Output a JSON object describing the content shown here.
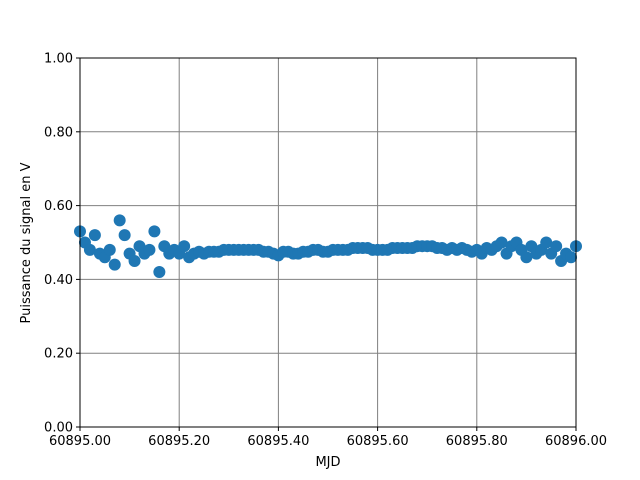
{
  "chart_data": {
    "type": "scatter",
    "xlabel": "MJD",
    "ylabel": "Puissance du signal en V",
    "color": "#1f77b4",
    "grid": true,
    "xlim": [
      60895.0,
      60896.0
    ],
    "ylim": [
      0,
      1
    ],
    "xticks": [
      {
        "value": 60895.0,
        "label": "60895.00"
      },
      {
        "value": 60895.2,
        "label": "60895.20"
      },
      {
        "value": 60895.4,
        "label": "60895.40"
      },
      {
        "value": 60895.6,
        "label": "60895.60"
      },
      {
        "value": 60895.8,
        "label": "60895.80"
      },
      {
        "value": 60896.0,
        "label": "60896.00"
      }
    ],
    "yticks": [
      {
        "value": 0,
        "label": "0.00"
      },
      {
        "value": 0.2,
        "label": "0.20"
      },
      {
        "value": 0.4,
        "label": "0.40"
      },
      {
        "value": 0.6,
        "label": "0.60"
      },
      {
        "value": 0.8,
        "label": "0.80"
      },
      {
        "value": 1,
        "label": "1.00"
      }
    ],
    "x": [
      60895.0,
      60895.01,
      60895.02,
      60895.03,
      60895.04,
      60895.05,
      60895.06,
      60895.07,
      60895.08,
      60895.09,
      60895.1,
      60895.11,
      60895.12,
      60895.13,
      60895.14,
      60895.15,
      60895.16,
      60895.17,
      60895.18,
      60895.19,
      60895.2,
      60895.21,
      60895.22,
      60895.23,
      60895.24,
      60895.25,
      60895.26,
      60895.27,
      60895.28,
      60895.29,
      60895.3,
      60895.31,
      60895.32,
      60895.33,
      60895.34,
      60895.35,
      60895.36,
      60895.37,
      60895.38,
      60895.39,
      60895.4,
      60895.41,
      60895.42,
      60895.43,
      60895.44,
      60895.45,
      60895.46,
      60895.47,
      60895.48,
      60895.49,
      60895.5,
      60895.51,
      60895.52,
      60895.53,
      60895.54,
      60895.55,
      60895.56,
      60895.57,
      60895.58,
      60895.59,
      60895.6,
      60895.61,
      60895.62,
      60895.63,
      60895.64,
      60895.65,
      60895.66,
      60895.67,
      60895.68,
      60895.69,
      60895.7,
      60895.71,
      60895.72,
      60895.73,
      60895.74,
      60895.75,
      60895.76,
      60895.77,
      60895.78,
      60895.79,
      60895.8,
      60895.81,
      60895.82,
      60895.83,
      60895.84,
      60895.85,
      60895.86,
      60895.87,
      60895.88,
      60895.89,
      60895.9,
      60895.91,
      60895.92,
      60895.93,
      60895.94,
      60895.95,
      60895.96,
      60895.97,
      60895.98,
      60895.99,
      60896.0
    ],
    "values": [
      0.53,
      0.5,
      0.48,
      0.52,
      0.47,
      0.46,
      0.48,
      0.44,
      0.56,
      0.52,
      0.47,
      0.45,
      0.49,
      0.47,
      0.48,
      0.53,
      0.42,
      0.49,
      0.47,
      0.48,
      0.47,
      0.49,
      0.46,
      0.47,
      0.475,
      0.47,
      0.475,
      0.475,
      0.475,
      0.48,
      0.48,
      0.48,
      0.48,
      0.48,
      0.48,
      0.48,
      0.48,
      0.475,
      0.475,
      0.47,
      0.465,
      0.475,
      0.475,
      0.47,
      0.47,
      0.475,
      0.475,
      0.48,
      0.48,
      0.475,
      0.475,
      0.48,
      0.48,
      0.48,
      0.48,
      0.485,
      0.485,
      0.485,
      0.485,
      0.48,
      0.48,
      0.48,
      0.48,
      0.485,
      0.485,
      0.485,
      0.485,
      0.485,
      0.49,
      0.49,
      0.49,
      0.49,
      0.485,
      0.485,
      0.48,
      0.485,
      0.48,
      0.485,
      0.48,
      0.475,
      0.48,
      0.47,
      0.485,
      0.48,
      0.49,
      0.5,
      0.47,
      0.49,
      0.5,
      0.48,
      0.46,
      0.49,
      0.47,
      0.48,
      0.5,
      0.47,
      0.49,
      0.45,
      0.47,
      0.46,
      0.49
    ]
  }
}
